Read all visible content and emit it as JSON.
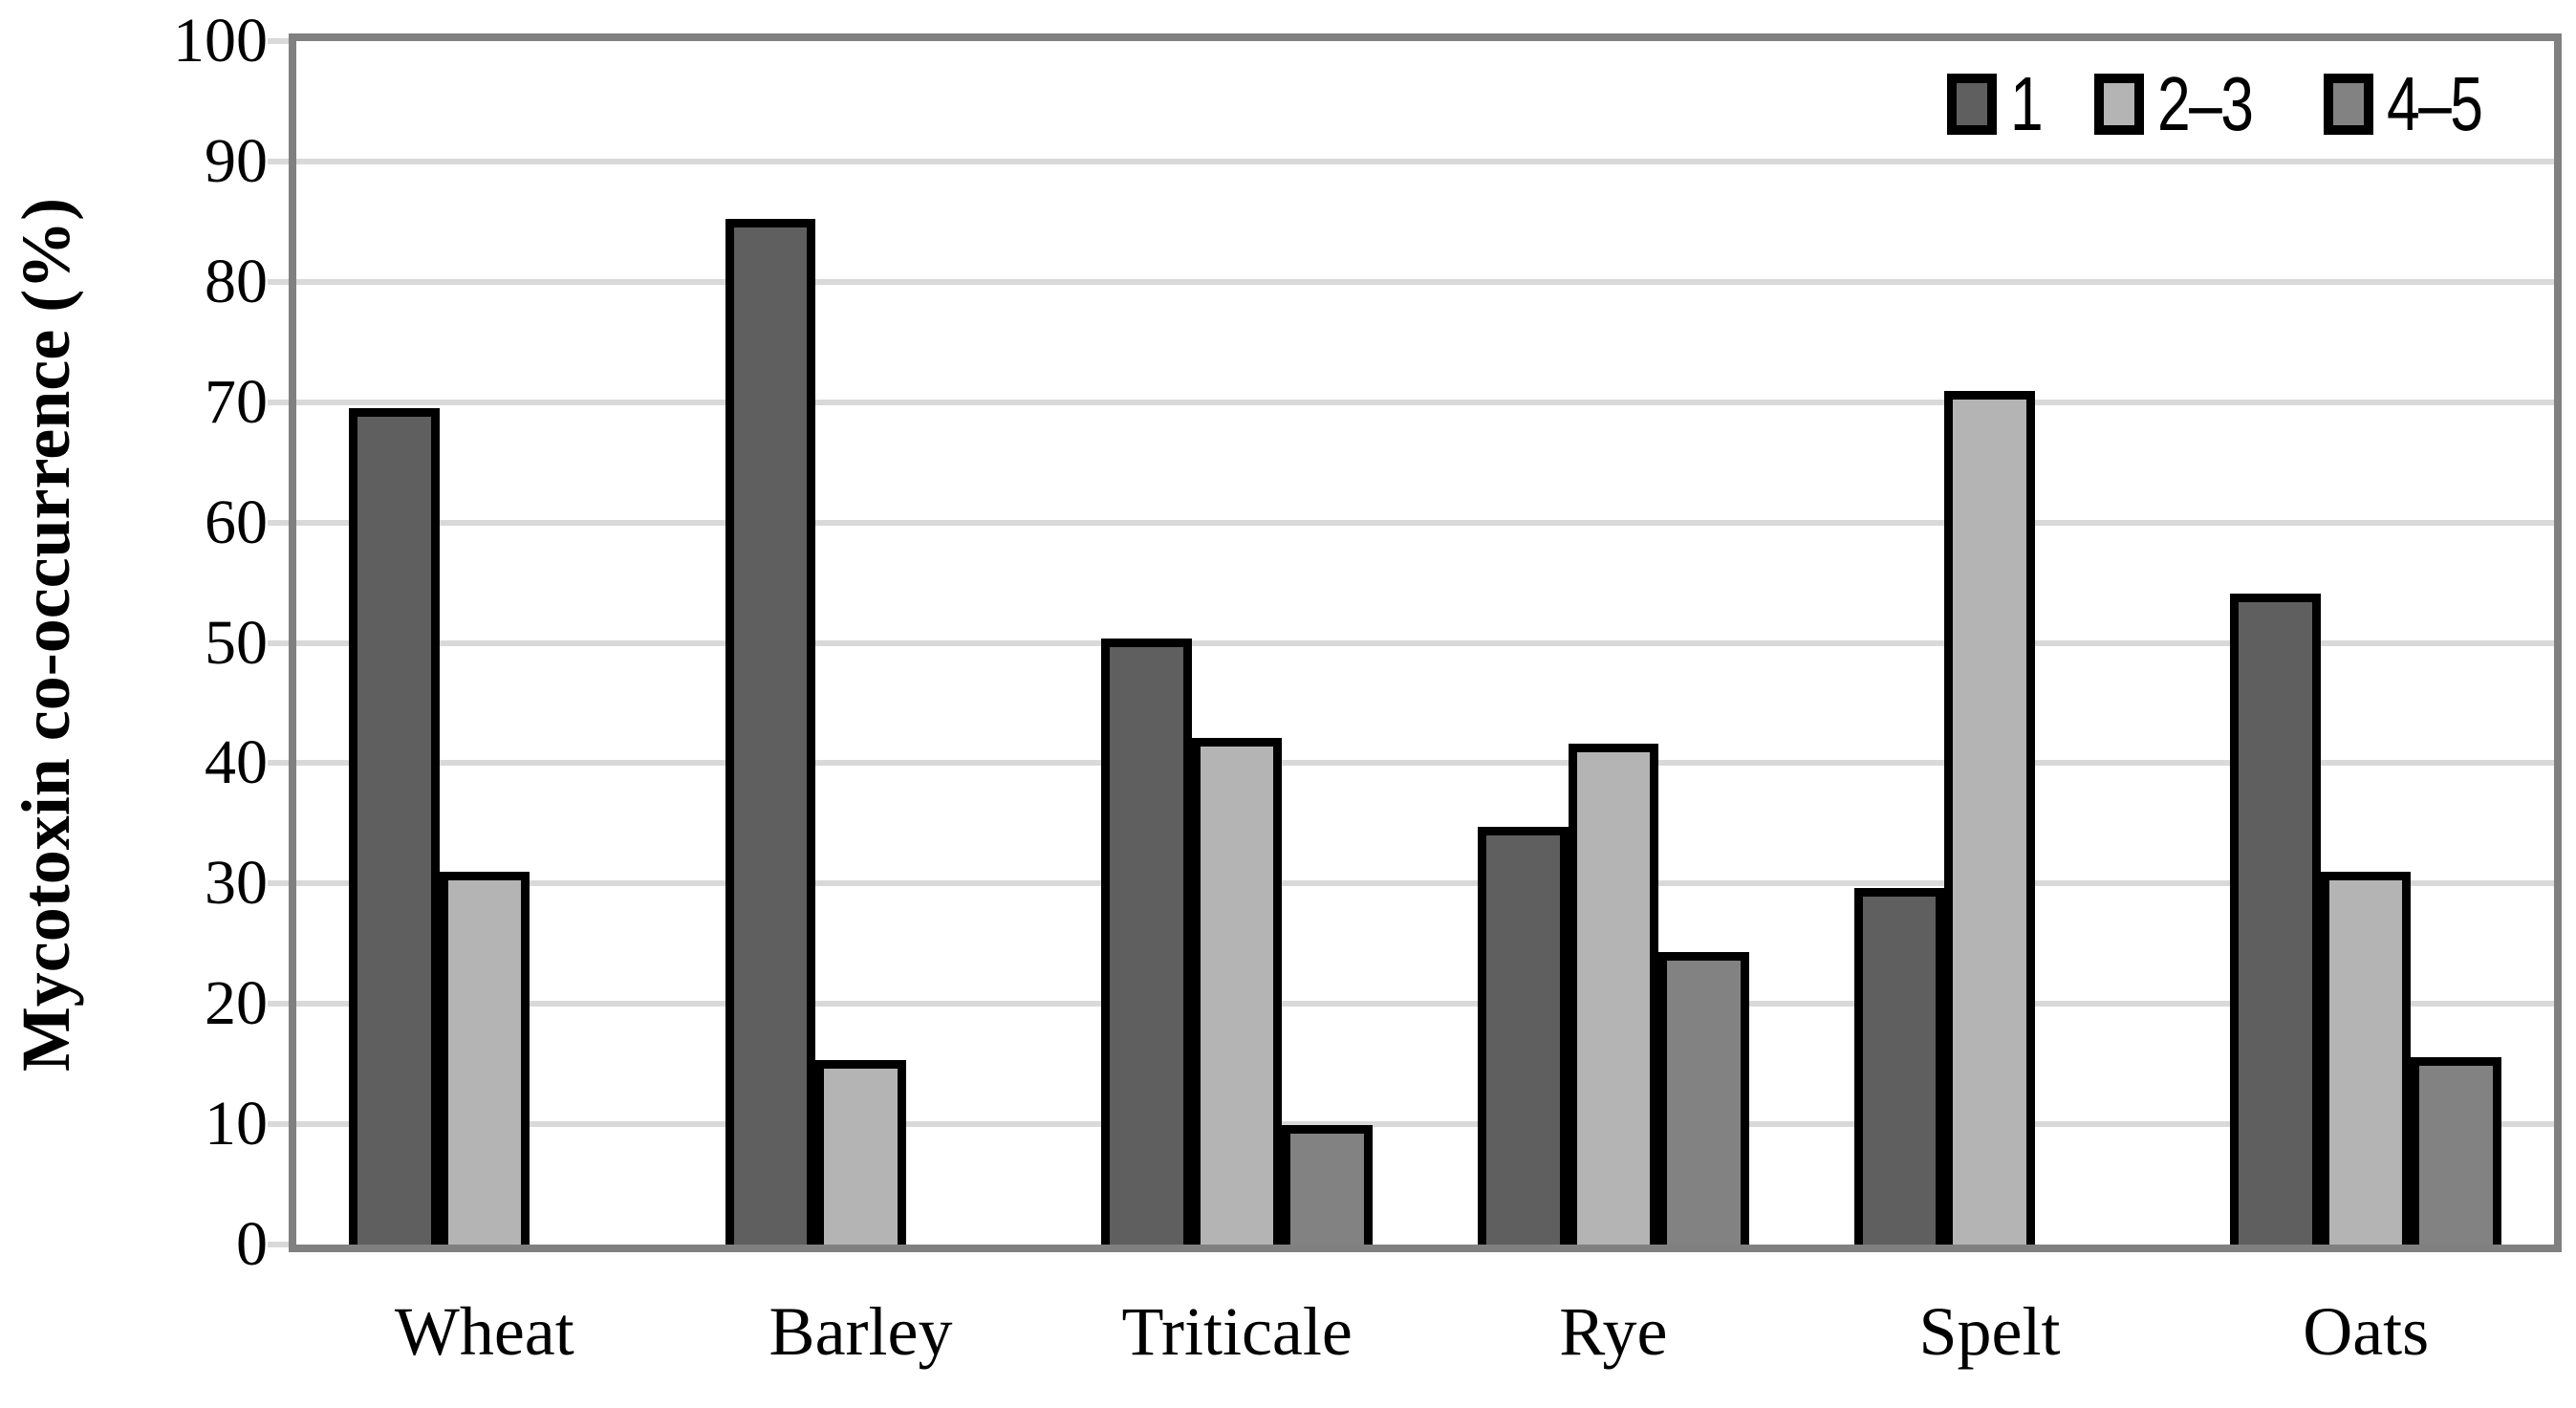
{
  "chart_data": {
    "type": "bar",
    "title": "",
    "categories": [
      "Wheat",
      "Barley",
      "Triticale",
      "Rye",
      "Spelt",
      "Oats"
    ],
    "series": [
      {
        "name": "1",
        "color": "#5f5f5f",
        "values": [
          69.1,
          84.8,
          50.0,
          34.3,
          29.2,
          53.7
        ]
      },
      {
        "name": "2–3",
        "color": "#b4b4b4",
        "values": [
          30.6,
          14.9,
          41.7,
          41.2,
          70.5,
          30.6
        ]
      },
      {
        "name": "4–5",
        "color": "#828282",
        "values": [
          null,
          null,
          9.5,
          23.9,
          null,
          15.2
        ]
      }
    ],
    "xlabel": "",
    "ylabel": "Mycotoxin co-occurrence (%)",
    "ylim": [
      0,
      100
    ],
    "yticks": [
      0,
      10,
      20,
      30,
      40,
      50,
      60,
      70,
      80,
      90,
      100
    ],
    "grid": true,
    "legend_position": "top-right",
    "gridline_color": "#d9d9d9",
    "axis_border_color": "#808080",
    "bar_border_color": "#000000"
  }
}
